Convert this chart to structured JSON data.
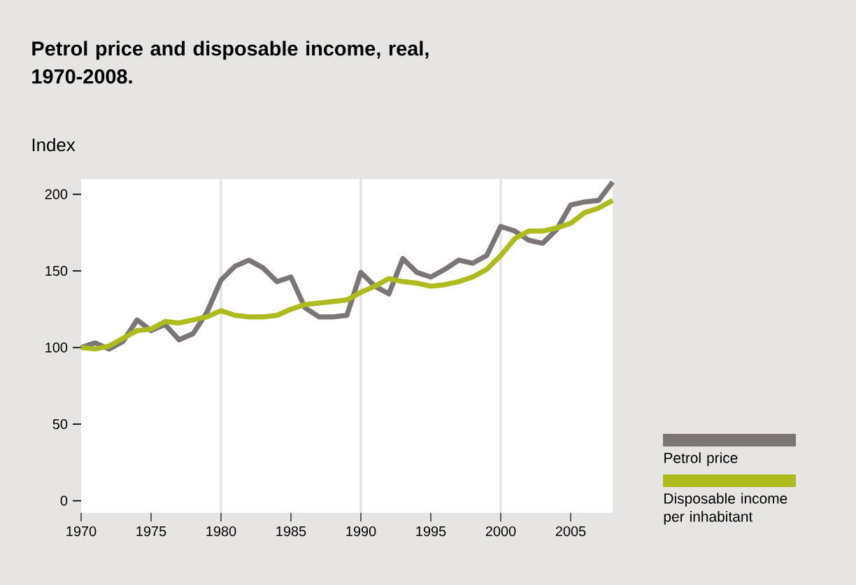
{
  "chart_data": {
    "type": "line",
    "title": "Petrol price and disposable income, real, 1970-2008.",
    "ylabel": "Index",
    "x": [
      1970,
      1971,
      1972,
      1973,
      1974,
      1975,
      1976,
      1977,
      1978,
      1979,
      1980,
      1981,
      1982,
      1983,
      1984,
      1985,
      1986,
      1987,
      1988,
      1989,
      1990,
      1991,
      1992,
      1993,
      1994,
      1995,
      1996,
      1997,
      1998,
      1999,
      2000,
      2001,
      2002,
      2003,
      2004,
      2005,
      2006,
      2007,
      2008
    ],
    "series": [
      {
        "name": "Petrol price",
        "color": "#7a7676",
        "values": [
          100,
          103,
          99,
          104,
          118,
          111,
          115,
          105,
          109,
          123,
          144,
          153,
          157,
          152,
          143,
          146,
          126,
          120,
          120,
          121,
          149,
          140,
          135,
          158,
          149,
          146,
          151,
          157,
          155,
          160,
          179,
          176,
          170,
          168,
          177,
          193,
          195,
          196,
          208
        ]
      },
      {
        "name": "Disposable income per inhabitant",
        "color": "#aebb1e",
        "values": [
          100,
          99,
          101,
          106,
          111,
          112,
          117,
          116,
          118,
          120,
          124,
          121,
          120,
          120,
          121,
          125,
          128,
          129,
          130,
          131,
          136,
          140,
          145,
          143,
          142,
          140,
          141,
          143,
          146,
          151,
          160,
          171,
          176,
          176,
          178,
          181,
          188,
          191,
          196
        ]
      }
    ],
    "xlim": [
      1970,
      2008
    ],
    "ylim": [
      -8,
      210
    ],
    "xticks": [
      1970,
      1975,
      1980,
      1985,
      1990,
      1995,
      2000,
      2005
    ],
    "yticks": [
      0,
      50,
      100,
      150,
      200
    ],
    "grid": "x",
    "legend": "right",
    "line_style": "solid",
    "marker": "none"
  }
}
